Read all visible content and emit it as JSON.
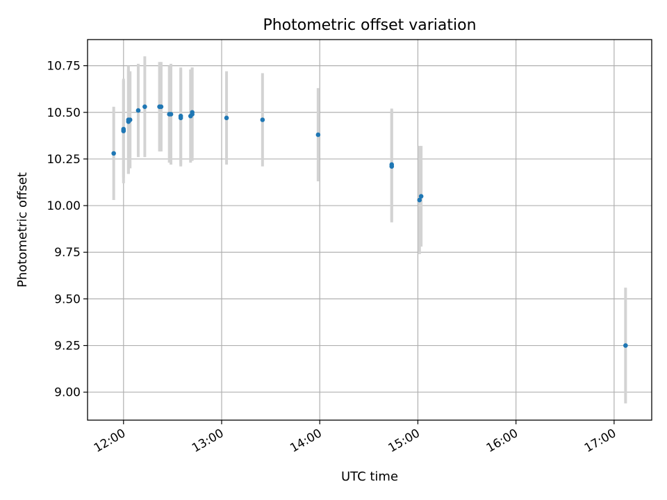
{
  "chart_data": {
    "type": "scatter",
    "title": "Photometric offset variation",
    "xlabel": "UTC time",
    "ylabel": "Photometric offset",
    "xlim": [
      "11:38",
      "17:23"
    ],
    "ylim": [
      8.85,
      10.89
    ],
    "grid": true,
    "x_ticks": [
      "12:00",
      "13:00",
      "14:00",
      "15:00",
      "16:00",
      "17:00"
    ],
    "y_ticks": [
      "9.00",
      "9.25",
      "9.50",
      "9.75",
      "10.00",
      "10.25",
      "10.50",
      "10.75"
    ],
    "colors": {
      "point": "#1f77b4",
      "errorbar": "#d3d3d3",
      "grid": "#b0b0b0"
    },
    "series": [
      {
        "points": [
          {
            "x": "11:54",
            "y": 10.28,
            "yerr": 0.25
          },
          {
            "x": "12:00",
            "y": 10.4,
            "yerr": 0.28
          },
          {
            "x": "12:00",
            "y": 10.41,
            "yerr": 0.26
          },
          {
            "x": "12:03",
            "y": 10.45,
            "yerr": 0.28
          },
          {
            "x": "12:03",
            "y": 10.46,
            "yerr": 0.29
          },
          {
            "x": "12:04",
            "y": 10.46,
            "yerr": 0.26
          },
          {
            "x": "12:09",
            "y": 10.51,
            "yerr": 0.25
          },
          {
            "x": "12:13",
            "y": 10.53,
            "yerr": 0.27
          },
          {
            "x": "12:22",
            "y": 10.53,
            "yerr": 0.24
          },
          {
            "x": "12:23",
            "y": 10.53,
            "yerr": 0.24
          },
          {
            "x": "12:28",
            "y": 10.49,
            "yerr": 0.26
          },
          {
            "x": "12:29",
            "y": 10.49,
            "yerr": 0.27
          },
          {
            "x": "12:35",
            "y": 10.48,
            "yerr": 0.26
          },
          {
            "x": "12:35",
            "y": 10.47,
            "yerr": 0.26
          },
          {
            "x": "12:41",
            "y": 10.48,
            "yerr": 0.25
          },
          {
            "x": "12:42",
            "y": 10.49,
            "yerr": 0.25
          },
          {
            "x": "12:42",
            "y": 10.5,
            "yerr": 0.24
          },
          {
            "x": "13:03",
            "y": 10.47,
            "yerr": 0.25
          },
          {
            "x": "13:25",
            "y": 10.46,
            "yerr": 0.25
          },
          {
            "x": "13:59",
            "y": 10.38,
            "yerr": 0.25
          },
          {
            "x": "14:44",
            "y": 10.22,
            "yerr": 0.3
          },
          {
            "x": "14:44",
            "y": 10.21,
            "yerr": 0.3
          },
          {
            "x": "15:01",
            "y": 10.03,
            "yerr": 0.29
          },
          {
            "x": "15:02",
            "y": 10.05,
            "yerr": 0.27
          },
          {
            "x": "17:07",
            "y": 9.25,
            "yerr": 0.31
          }
        ]
      }
    ]
  }
}
